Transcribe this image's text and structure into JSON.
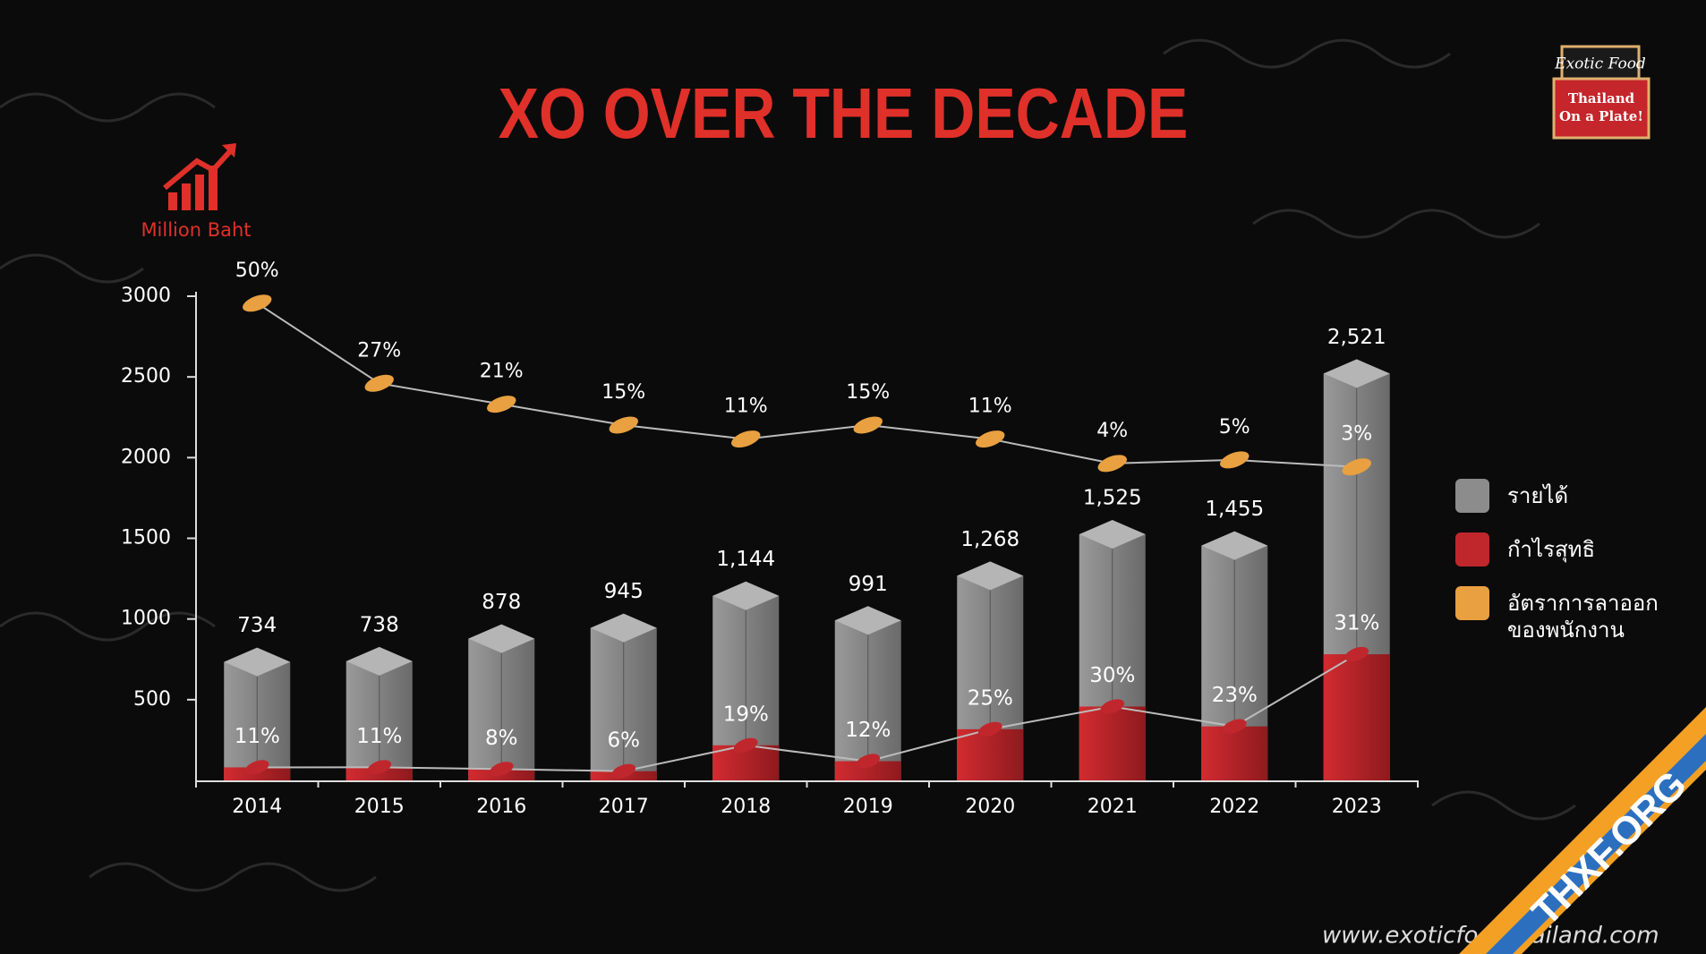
{
  "chart_data": {
    "type": "bar",
    "title": "XO OVER THE DECADE",
    "y_label": "Million Baht",
    "categories": [
      "2014",
      "2015",
      "2016",
      "2017",
      "2018",
      "2019",
      "2020",
      "2021",
      "2022",
      "2023"
    ],
    "series": [
      {
        "name": "รายได้",
        "color": "#8c8c8c",
        "values": [
          734,
          738,
          878,
          945,
          1144,
          991,
          1268,
          1525,
          1455,
          2521
        ],
        "value_labels": [
          "734",
          "738",
          "878",
          "945",
          "1,144",
          "991",
          "1,268",
          "1,525",
          "1,455",
          "2,521"
        ]
      },
      {
        "name": "กำไรสุทธิ",
        "color": "#c0272d",
        "values": [
          11,
          11,
          8,
          6,
          19,
          12,
          25,
          30,
          23,
          31
        ],
        "value_labels": [
          "11%",
          "11%",
          "8%",
          "6%",
          "19%",
          "12%",
          "25%",
          "30%",
          "23%",
          "31%"
        ]
      },
      {
        "name": "อัตราการลาออกของพนักงาน",
        "color": "#e8a040",
        "type": "line",
        "axis": "y2",
        "values": [
          50,
          27,
          21,
          15,
          11,
          15,
          11,
          4,
          5,
          3
        ],
        "value_labels": [
          "50%",
          "27%",
          "21%",
          "15%",
          "11%",
          "15%",
          "11%",
          "4%",
          "5%",
          "3%"
        ]
      }
    ],
    "ylim": [
      0,
      3000
    ],
    "yticks": [
      500,
      1000,
      1500,
      2000,
      2500,
      3000
    ],
    "y2lim": [
      -87,
      52
    ]
  },
  "logo": {
    "brand": "Exotic Food",
    "slogan": "Thailand On a Plate!"
  },
  "website": "www.exoticfoodthailand.com",
  "watermark": "THXF.ORG"
}
